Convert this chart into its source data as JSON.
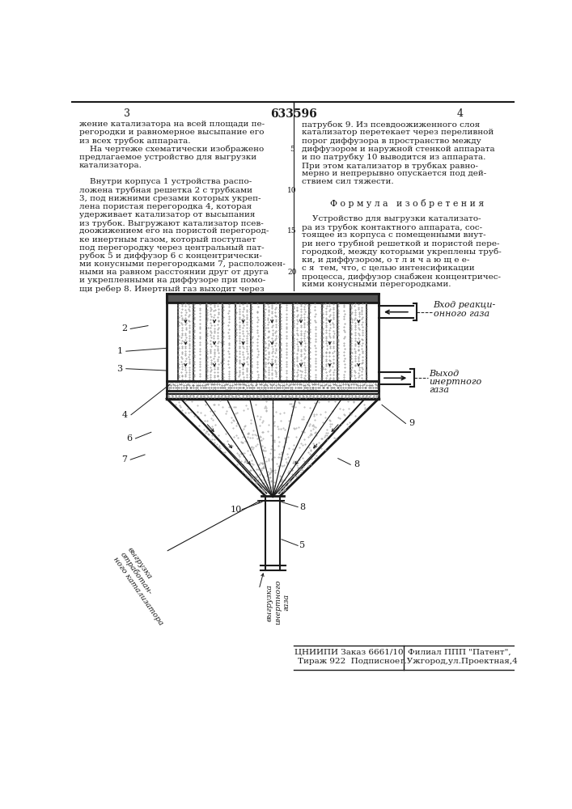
{
  "title": "633596",
  "page_left": "3",
  "page_right": "4",
  "bg_color": "#ffffff",
  "text_color": "#1a1a1a",
  "line_color": "#1a1a1a",
  "left_col_lines": [
    "жение катализатора на всей площади пе-",
    "регородки и равномерное высыпание его",
    "из всех трубок аппарата.",
    "    На чертеже схематически изображено",
    "предлагаемое устройство для выгрузки",
    "катализатора.",
    " ",
    "    Внутри корпуса 1 устройства распо-",
    "ложена трубная решетка 2 с трубками",
    "3, под нижними срезами которых укреп-",
    "лена пористая перегородка 4, которая",
    "удерживает катализатор от высыпания",
    "из трубок. Выгружают катализатор псев-",
    "доожижением его на пористой перегород-",
    "ке инертным газом, который поступает",
    "под перегородку через центральный пат-",
    "рубок 5 и диффузор 6 с концентрически-",
    "ми конусными перегородками 7, расположен-",
    "ными на равном расстоянии друг от друга",
    "и укрепленными на диффузоре при помо-",
    "щи ребер 8. Инертный газ выходит через"
  ],
  "right_col_lines_top": [
    "патрубок 9. Из псевдоожиженного слоя",
    "катализатор перетекает через переливной",
    "порог диффузора в пространство между",
    "диффузором и наружной стенкой аппарата",
    "и по патрубку 10 выводится из аппарата.",
    "При этом катализатор в трубках равно-",
    "мерно и непрерывно опускается под дей-",
    "ствием сил тяжести."
  ],
  "formula_header": "Ф о р м у л а   и з о б р е т е н и я",
  "formula_lines": [
    "    Устройство для выгрузки катализато-",
    "ра из трубок контактного аппарата, сос-",
    "тоящее из корпуса с помещенными внут-",
    "ри него трубной решеткой и пористой пере-",
    "городкой, между которыми укреплены труб-",
    "ки, и диффузором, о т л и ч а ю щ е е-",
    "с я  тем, что, с целью интенсификации",
    "процесса, диффузор снабжен концентричес-",
    "кими конусными перегородками."
  ],
  "line_numbers": [
    5,
    10,
    15,
    20
  ],
  "line_number_rows": [
    3,
    8,
    13,
    18
  ],
  "bottom_left_text": [
    "ЦНИИПИ Заказ 6661/10",
    "Тираж 922  Подписное"
  ],
  "bottom_right_text": [
    "Филиал ППП \"Патент\",",
    "г.Ужгород,ул.Проектная,4"
  ],
  "label_inlet": [
    "Вход реакци-",
    "онного газа"
  ],
  "label_outlet": [
    "Выход",
    "инертного",
    "газа"
  ],
  "label_catalyst": [
    "выгрузка",
    "отработан-",
    "ного катализатора"
  ],
  "label_gas": [
    "выгрузка",
    "инертного",
    "газа"
  ]
}
